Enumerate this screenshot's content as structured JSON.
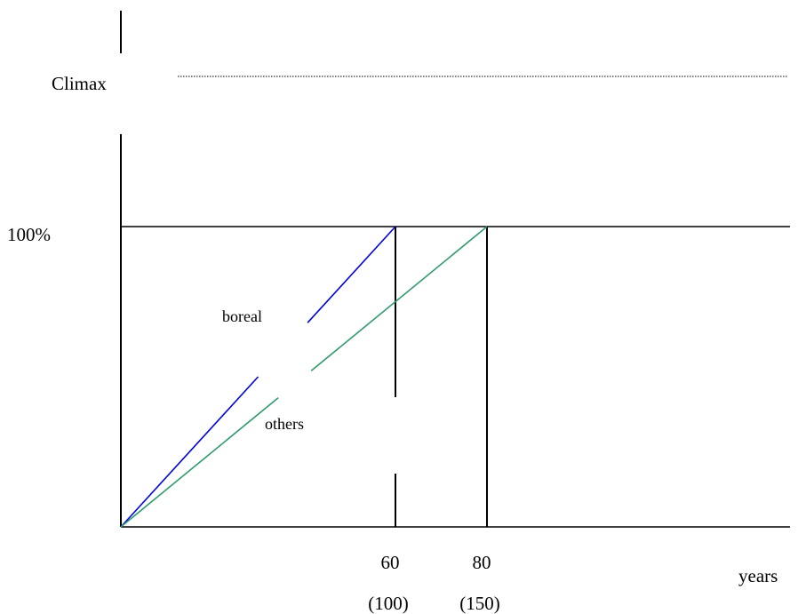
{
  "chart_data": {
    "type": "line",
    "title": "",
    "xlabel": "years",
    "ylabel": "",
    "ytick_label": "100%",
    "climax_label": "Climax",
    "xticks": [
      {
        "value": 60,
        "label": "60",
        "sublabel": "(100)"
      },
      {
        "value": 80,
        "label": "80",
        "sublabel": "(150)"
      }
    ],
    "xlim": [
      0,
      125
    ],
    "ylim": [
      0,
      100
    ],
    "series": [
      {
        "name": "boreal",
        "color": "#0000dd",
        "x": [
          0,
          60
        ],
        "y": [
          0,
          100
        ]
      },
      {
        "name": "others",
        "color": "#2e9b6a",
        "x": [
          0,
          80
        ],
        "y": [
          0,
          100
        ]
      }
    ]
  }
}
